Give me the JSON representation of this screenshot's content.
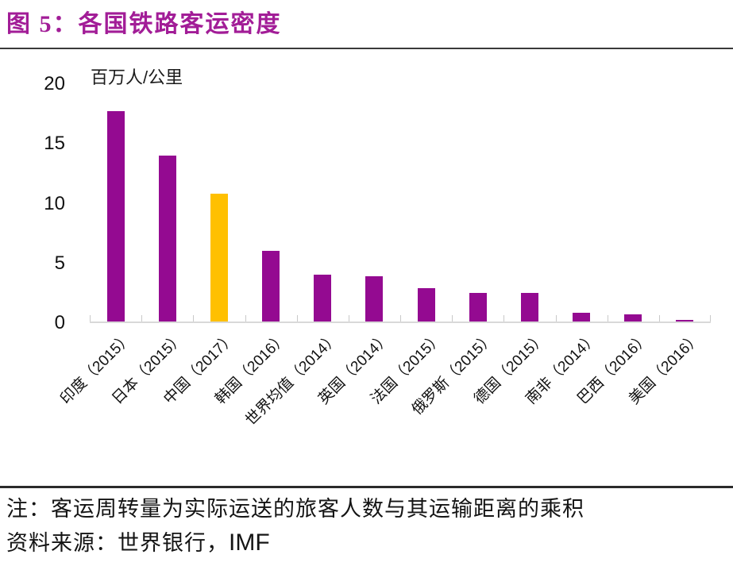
{
  "header": {
    "title": "图 5：各国铁路客运密度"
  },
  "chart_data": {
    "type": "bar",
    "title": "各国铁路客运密度",
    "unit_label": "百万人/公里",
    "categories": [
      "印度（2015）",
      "日本（2015）",
      "中国（2017）",
      "韩国（2016）",
      "世界均值（2014）",
      "英国（2014）",
      "法国（2015）",
      "俄罗斯（2015）",
      "德国（2015）",
      "南非（2014）",
      "巴西（2016）",
      "美国（2016）"
    ],
    "values": [
      17.6,
      13.9,
      10.7,
      5.9,
      3.9,
      3.8,
      2.8,
      2.4,
      2.4,
      0.7,
      0.6,
      0.1
    ],
    "highlight_index": 2,
    "bar_color": "#940a91",
    "highlight_color": "#ffc000",
    "ylim": [
      0,
      20
    ],
    "yticks": [
      0,
      5,
      10,
      15,
      20
    ],
    "grid": false,
    "legend": null,
    "xlabel": "",
    "ylabel": "百万人/公里"
  },
  "footer": {
    "note": "注：客运周转量为实际运送的旅客人数与其运输距离的乘积",
    "source_label": "资料来源：世界银行，",
    "source_org": "IMF"
  },
  "colors": {
    "title": "#a21d97",
    "bar": "#940a91",
    "highlight": "#ffc000",
    "axis_line": "#d9d9d9",
    "rule": "#2b2b2b"
  }
}
